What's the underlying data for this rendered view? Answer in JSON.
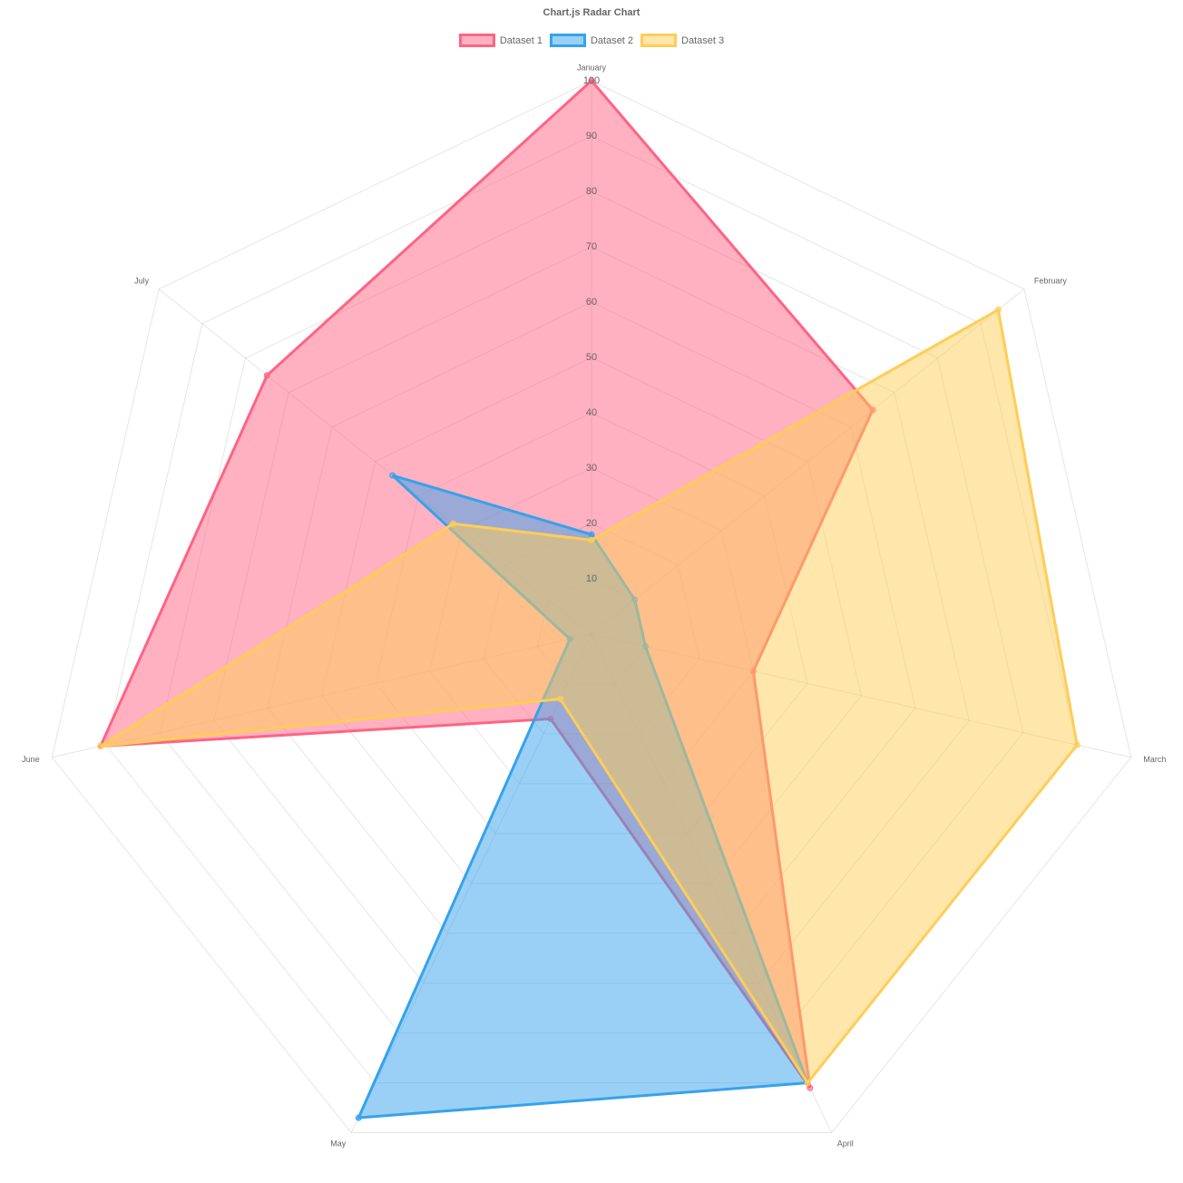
{
  "chart_data": {
    "type": "radar",
    "title": "Chart.js Radar Chart",
    "labels": [
      "January",
      "February",
      "March",
      "April",
      "May",
      "June",
      "July"
    ],
    "scale": {
      "min": 0,
      "max": 100,
      "ticks": [
        "10",
        "20",
        "30",
        "40",
        "50",
        "60",
        "70",
        "80",
        "90",
        "100"
      ]
    },
    "legend_position": "top",
    "series": [
      {
        "name": "Dataset 1",
        "values": [
          100,
          65,
          30,
          91,
          17,
          91,
          75
        ],
        "border_color": "#ff6384",
        "fill_color": "rgba(255, 99, 132, 0.5)"
      },
      {
        "name": "Dataset 2",
        "values": [
          18,
          10,
          10,
          90,
          97,
          4,
          46
        ],
        "border_color": "#36a2eb",
        "fill_color": "rgba(54, 162, 235, 0.5)"
      },
      {
        "name": "Dataset 3",
        "values": [
          17,
          94,
          90,
          90,
          13,
          91,
          32
        ],
        "border_color": "#ffcd56",
        "fill_color": "rgba(255, 205, 86, 0.5)"
      }
    ]
  }
}
